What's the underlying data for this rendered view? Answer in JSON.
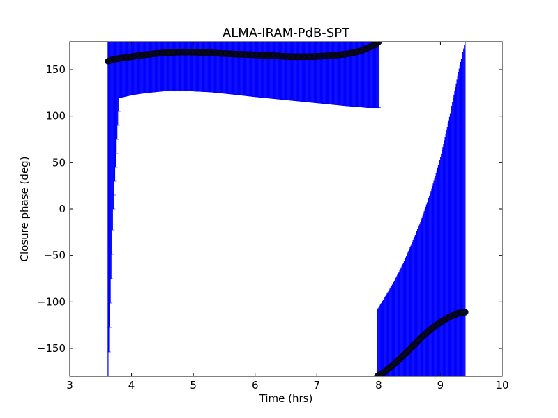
{
  "chart_data": {
    "type": "scatter",
    "title": "ALMA-IRAM-PdB-SPT",
    "xlabel": "Time (hrs)",
    "ylabel": "Closure phase (deg)",
    "xlim": [
      3,
      10
    ],
    "ylim": [
      -180,
      180
    ],
    "xticks": [
      "3",
      "4",
      "5",
      "6",
      "7",
      "8",
      "9",
      "10"
    ],
    "yticks": [
      "−150",
      "−100",
      "−50",
      "0",
      "50",
      "100",
      "150"
    ],
    "grid": false,
    "colors": {
      "points": "#0a0a2a",
      "errorbars": "#0000ff"
    },
    "segments": [
      {
        "x": [
          3.62,
          3.7,
          3.8,
          4.0,
          4.2,
          4.5,
          4.8,
          5.0,
          5.3,
          5.6,
          6.0,
          6.3,
          6.6,
          6.9,
          7.2,
          7.5,
          7.7,
          7.85,
          7.95,
          8.0
        ],
        "y": [
          159,
          161,
          162,
          164,
          166,
          168,
          169,
          169,
          168,
          167,
          166,
          165,
          164,
          164,
          165,
          167,
          170,
          174,
          177,
          180
        ],
        "err_low": [
          -180,
          -5,
          120,
          123,
          125,
          127,
          127,
          127,
          126,
          124,
          121,
          119,
          117,
          115,
          113,
          111,
          110,
          109,
          109,
          109
        ],
        "err_high": [
          180,
          180,
          180,
          180,
          180,
          180,
          180,
          180,
          180,
          180,
          180,
          180,
          180,
          180,
          180,
          180,
          180,
          180,
          180,
          180
        ]
      },
      {
        "x": [
          7.98,
          8.1,
          8.25,
          8.4,
          8.55,
          8.7,
          8.85,
          9.0,
          9.15,
          9.3,
          9.4
        ],
        "y": [
          -180,
          -175,
          -167,
          -158,
          -148,
          -138,
          -129,
          -122,
          -116,
          -112,
          -111
        ],
        "err_low": [
          -180,
          -180,
          -180,
          -180,
          -180,
          -180,
          -180,
          -180,
          -180,
          -180,
          -180
        ],
        "err_high": [
          -108,
          -95,
          -78,
          -58,
          -35,
          -10,
          20,
          55,
          100,
          150,
          180
        ]
      }
    ]
  }
}
